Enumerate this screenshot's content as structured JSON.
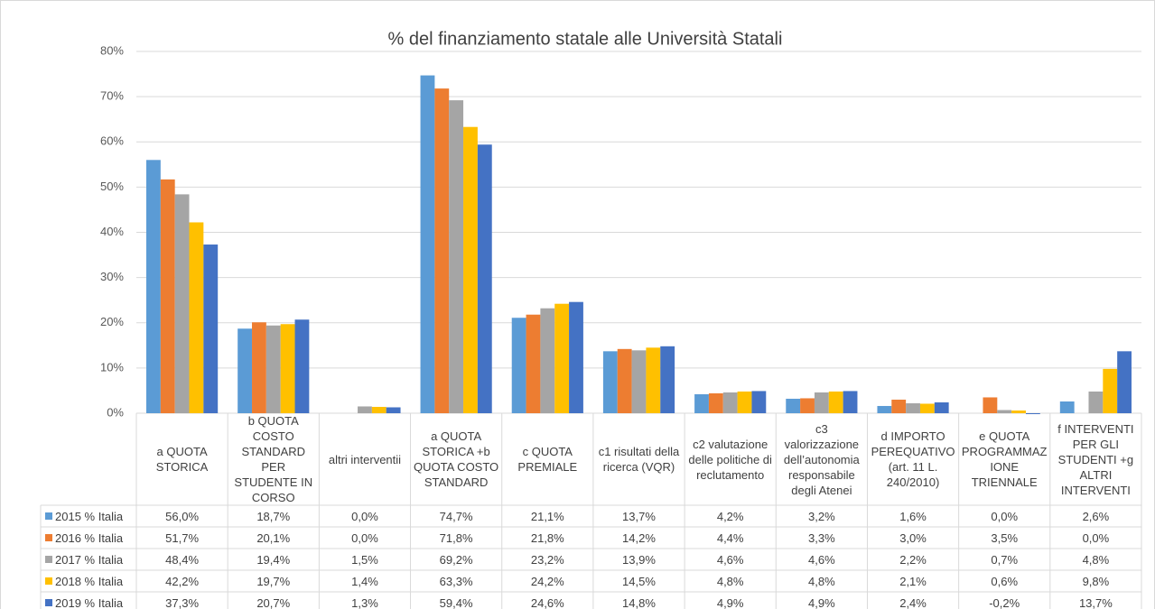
{
  "chart_data": {
    "type": "bar",
    "title": "% del finanziamento statale alle Università Statali",
    "categories": [
      "a QUOTA STORICA",
      "b QUOTA COSTO STANDARD PER STUDENTE IN CORSO",
      "altri interventii",
      "a QUOTA STORICA +b QUOTA COSTO STANDARD",
      "c QUOTA PREMIALE",
      "c1 risultati della ricerca (VQR)",
      "c2 valutazione delle politiche di reclutamento",
      "c3 valorizzazione dell’autonomia responsabile degli Atenei",
      "d IMPORTO PEREQUATIVO (art. 11 L. 240/2010)",
      "e QUOTA PROGRAMMAZIONE TRIENNALE",
      "f INTERVENTI PER GLI STUDENTI +g ALTRI INTERVENTI"
    ],
    "series": [
      {
        "name": "2015 % Italia",
        "color": "#5b9bd5",
        "values": [
          56.0,
          18.7,
          0.0,
          74.7,
          21.1,
          13.7,
          4.2,
          3.2,
          1.6,
          0.0,
          2.6
        ],
        "value_labels": [
          "56,0%",
          "18,7%",
          "0,0%",
          "74,7%",
          "21,1%",
          "13,7%",
          "4,2%",
          "3,2%",
          "1,6%",
          "0,0%",
          "2,6%"
        ]
      },
      {
        "name": "2016 % Italia",
        "color": "#ed7d31",
        "values": [
          51.7,
          20.1,
          0.0,
          71.8,
          21.8,
          14.2,
          4.4,
          3.3,
          3.0,
          3.5,
          0.0
        ],
        "value_labels": [
          "51,7%",
          "20,1%",
          "0,0%",
          "71,8%",
          "21,8%",
          "14,2%",
          "4,4%",
          "3,3%",
          "3,0%",
          "3,5%",
          "0,0%"
        ]
      },
      {
        "name": "2017 % Italia",
        "color": "#a5a5a5",
        "values": [
          48.4,
          19.4,
          1.5,
          69.2,
          23.2,
          13.9,
          4.6,
          4.6,
          2.2,
          0.7,
          4.8
        ],
        "value_labels": [
          "48,4%",
          "19,4%",
          "1,5%",
          "69,2%",
          "23,2%",
          "13,9%",
          "4,6%",
          "4,6%",
          "2,2%",
          "0,7%",
          "4,8%"
        ]
      },
      {
        "name": "2018 % Italia",
        "color": "#ffc000",
        "values": [
          42.2,
          19.7,
          1.4,
          63.3,
          24.2,
          14.5,
          4.8,
          4.8,
          2.1,
          0.6,
          9.8
        ],
        "value_labels": [
          "42,2%",
          "19,7%",
          "1,4%",
          "63,3%",
          "24,2%",
          "14,5%",
          "4,8%",
          "4,8%",
          "2,1%",
          "0,6%",
          "9,8%"
        ]
      },
      {
        "name": "2019 % Italia",
        "color": "#4472c4",
        "values": [
          37.3,
          20.7,
          1.3,
          59.4,
          24.6,
          14.8,
          4.9,
          4.9,
          2.4,
          -0.2,
          13.7
        ],
        "value_labels": [
          "37,3%",
          "20,7%",
          "1,3%",
          "59,4%",
          "24,6%",
          "14,8%",
          "4,9%",
          "4,9%",
          "2,4%",
          "-0,2%",
          "13,7%"
        ]
      }
    ],
    "ylim": [
      0,
      80
    ],
    "yticks": [
      {
        "value": 0,
        "label": "0%"
      },
      {
        "value": 10,
        "label": "10%"
      },
      {
        "value": 20,
        "label": "20%"
      },
      {
        "value": 30,
        "label": "30%"
      },
      {
        "value": 40,
        "label": "40%"
      },
      {
        "value": 50,
        "label": "50%"
      },
      {
        "value": 60,
        "label": "60%"
      },
      {
        "value": 70,
        "label": "70%"
      },
      {
        "value": 80,
        "label": "80%"
      }
    ],
    "grid": true
  }
}
